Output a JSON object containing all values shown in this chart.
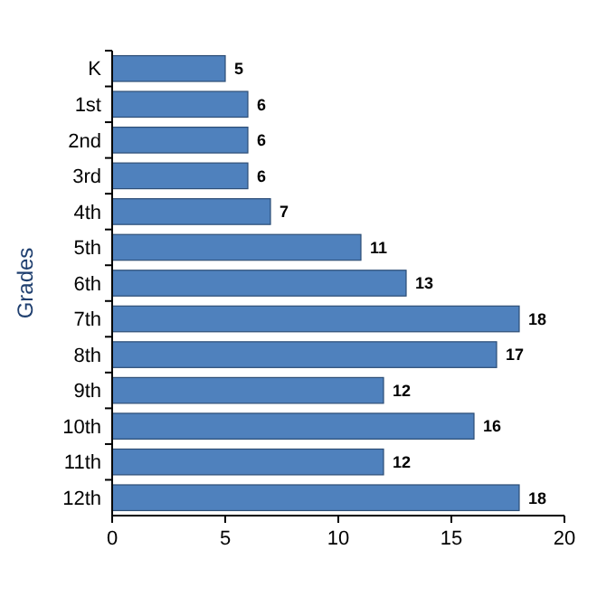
{
  "chart_data": {
    "type": "bar",
    "orientation": "horizontal",
    "ylabel": "Grades",
    "categories": [
      "K",
      "1st",
      "2nd",
      "3rd",
      "4th",
      "5th",
      "6th",
      "7th",
      "8th",
      "9th",
      "10th",
      "11th",
      "12th"
    ],
    "values": [
      5,
      6,
      6,
      6,
      7,
      11,
      13,
      18,
      17,
      12,
      16,
      12,
      18
    ],
    "color": "#4f81bd",
    "xlim": [
      0,
      20
    ],
    "xticks": [
      0,
      5,
      10,
      15,
      20
    ],
    "data_labels": true
  }
}
